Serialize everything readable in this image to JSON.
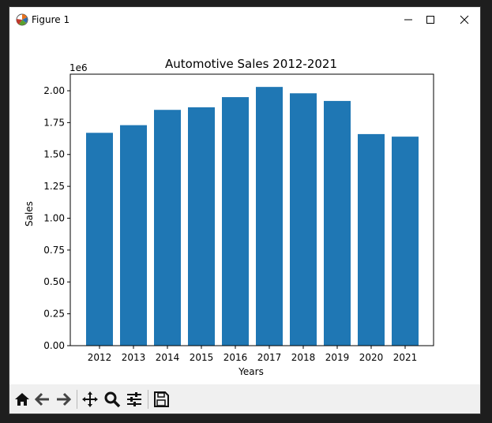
{
  "window": {
    "title": "Figure 1",
    "controls": [
      "minimize",
      "maximize",
      "close"
    ]
  },
  "toolbar": {
    "buttons": [
      {
        "name": "home-icon",
        "tooltip": "Reset original view"
      },
      {
        "name": "back-arrow-icon",
        "tooltip": "Back to previous view"
      },
      {
        "name": "forward-arrow-icon",
        "tooltip": "Forward to next view"
      },
      {
        "name": "pan-icon",
        "tooltip": "Pan axes"
      },
      {
        "name": "zoom-icon",
        "tooltip": "Zoom to rectangle"
      },
      {
        "name": "configure-subplots-icon",
        "tooltip": "Configure subplots"
      },
      {
        "name": "save-icon",
        "tooltip": "Save the figure"
      }
    ]
  },
  "chart_data": {
    "type": "bar",
    "title": "Automotive Sales 2012-2021",
    "xlabel": "Years",
    "ylabel": "Sales",
    "offset_label": "1e6",
    "categories": [
      "2012",
      "2013",
      "2014",
      "2015",
      "2016",
      "2017",
      "2018",
      "2019",
      "2020",
      "2021"
    ],
    "values": [
      1670000,
      1730000,
      1850000,
      1870000,
      1950000,
      2030000,
      1980000,
      1920000,
      1660000,
      1640000
    ],
    "ylim": [
      0,
      2130000
    ],
    "yticks": [
      0,
      250000,
      500000,
      750000,
      1000000,
      1250000,
      1500000,
      1750000,
      2000000
    ],
    "ytick_labels": [
      "0.00",
      "0.25",
      "0.50",
      "0.75",
      "1.00",
      "1.25",
      "1.50",
      "1.75",
      "2.00"
    ],
    "bar_color": "#1f77b4",
    "grid": false,
    "legend": false
  }
}
